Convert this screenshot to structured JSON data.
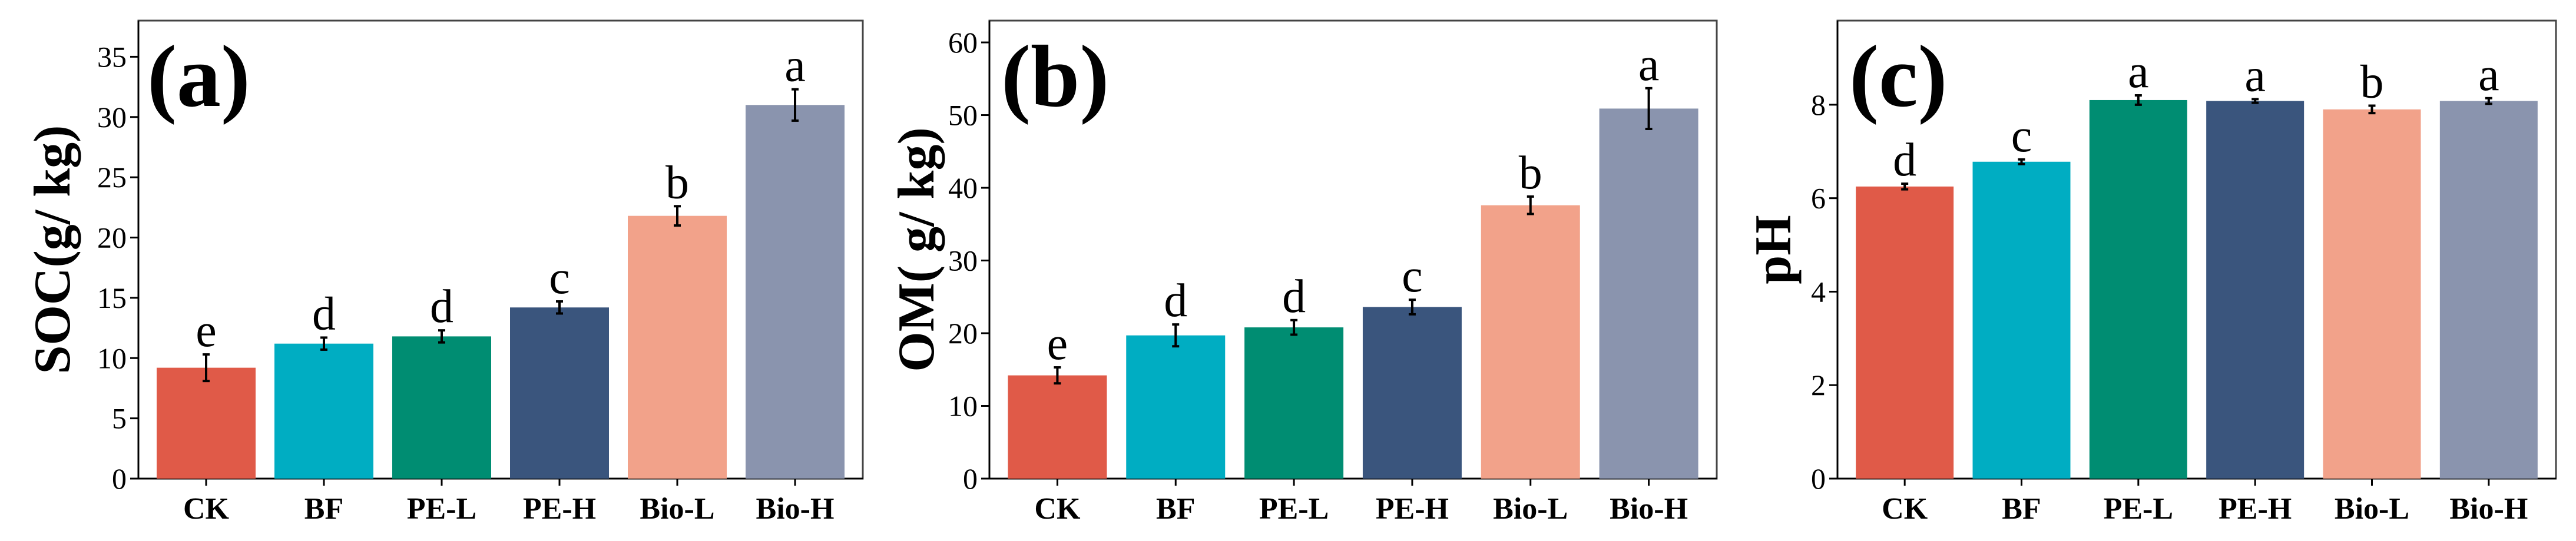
{
  "colors": [
    "#e05a48",
    "#00adc2",
    "#008d72",
    "#3a557d",
    "#f2a28a",
    "#8a94ae"
  ],
  "chart_data": [
    {
      "type": "bar",
      "panel_label": "(a)",
      "ylabel": "SOC(g/ kg)",
      "categories": [
        "CK",
        "BF",
        "PE-L",
        "PE-H",
        "Bio-L",
        "Bio-H"
      ],
      "values": [
        9.2,
        11.2,
        11.8,
        14.2,
        21.8,
        31.0
      ],
      "errors": [
        1.1,
        0.5,
        0.5,
        0.5,
        0.8,
        1.3
      ],
      "letters": [
        "e",
        "d",
        "d",
        "c",
        "b",
        "a"
      ],
      "ylim": [
        0,
        38
      ],
      "yticks": [
        0,
        5,
        10,
        15,
        20,
        25,
        30,
        35
      ],
      "ytick_labels": [
        "0",
        "5",
        "10",
        "15",
        "20",
        "25",
        "30",
        "35"
      ]
    },
    {
      "type": "bar",
      "panel_label": "(b)",
      "ylabel": "OM( g/ kg)",
      "categories": [
        "CK",
        "BF",
        "PE-L",
        "PE-H",
        "Bio-L",
        "Bio-H"
      ],
      "values": [
        14.2,
        19.7,
        20.8,
        23.6,
        37.6,
        50.9
      ],
      "errors": [
        1.1,
        1.5,
        1.0,
        1.0,
        1.2,
        2.8
      ],
      "letters": [
        "e",
        "d",
        "d",
        "c",
        "b",
        "a"
      ],
      "ylim": [
        0,
        63
      ],
      "yticks": [
        0,
        10,
        20,
        30,
        40,
        50,
        60
      ],
      "ytick_labels": [
        "0",
        "10",
        "20",
        "30",
        "40",
        "50",
        "60"
      ]
    },
    {
      "type": "bar",
      "panel_label": "(c)",
      "ylabel": "pH",
      "categories": [
        "CK",
        "BF",
        "PE-L",
        "PE-H",
        "Bio-L",
        "Bio-H"
      ],
      "values": [
        6.25,
        6.78,
        8.1,
        8.08,
        7.9,
        8.08
      ],
      "errors": [
        0.06,
        0.05,
        0.1,
        0.04,
        0.08,
        0.06
      ],
      "letters": [
        "d",
        "c",
        "a",
        "a",
        "b",
        "a"
      ],
      "ylim": [
        0,
        9.8
      ],
      "yticks": [
        0,
        2,
        4,
        6,
        8
      ],
      "ytick_labels": [
        "0",
        "2",
        "4",
        "6",
        "8"
      ]
    }
  ]
}
